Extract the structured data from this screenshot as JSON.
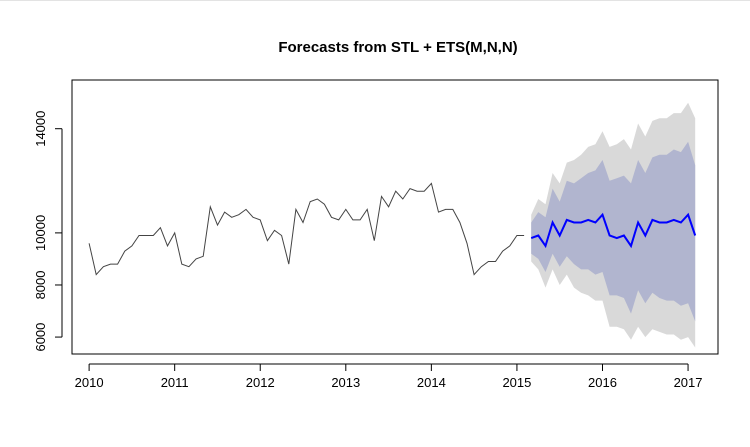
{
  "chart_data": {
    "type": "line",
    "title": "Forecasts from STL +  ETS(M,N,N)",
    "xlabel": "",
    "ylabel": "",
    "xlim": [
      2009.8,
      2017.35
    ],
    "ylim": [
      5350,
      15870
    ],
    "x_ticks": [
      2010,
      2011,
      2012,
      2013,
      2014,
      2015,
      2016,
      2017
    ],
    "y_ticks": [
      6000,
      8000,
      10000,
      14000
    ],
    "grid": false,
    "legend": "none",
    "colors": {
      "history": "#444444",
      "forecast": "#0000ff",
      "band80": "#b1b5cf",
      "band95": "#d9d9d9",
      "axis": "#000000"
    },
    "history": {
      "start": 2010.0,
      "step": 0.0833333,
      "values": [
        9600,
        8400,
        8700,
        8800,
        8800,
        9300,
        9500,
        9900,
        9900,
        9900,
        10200,
        9500,
        10000,
        8800,
        8700,
        9000,
        9100,
        11000,
        10300,
        10800,
        10600,
        10700,
        10900,
        10600,
        10500,
        9700,
        10100,
        9900,
        8800,
        10900,
        10400,
        11200,
        11300,
        11100,
        10600,
        10500,
        10900,
        10500,
        10500,
        10900,
        9700,
        11400,
        11000,
        11600,
        11300,
        11700,
        11600,
        11600,
        11900,
        10800,
        10900,
        10900,
        10400,
        9600,
        8400,
        8700,
        8900,
        8900,
        9300,
        9500,
        9900,
        9900
      ]
    },
    "forecast": {
      "start": 2015.1667,
      "step": 0.0833333,
      "mean": [
        9800,
        9900,
        9500,
        10400,
        9900,
        10500,
        10400,
        10400,
        10500,
        10400,
        10700,
        9900,
        9800,
        9900,
        9500,
        10400,
        9900,
        10500,
        10400,
        10400,
        10500,
        10400,
        10700,
        9900
      ],
      "lo80": [
        9200,
        9000,
        8500,
        9200,
        8700,
        9100,
        8800,
        8600,
        8600,
        8400,
        8500,
        7600,
        7600,
        7500,
        6900,
        7800,
        7300,
        7700,
        7500,
        7400,
        7400,
        7200,
        7300,
        6600
      ],
      "hi80": [
        10400,
        10800,
        10600,
        11700,
        11200,
        12000,
        11900,
        12100,
        12300,
        12400,
        12800,
        12000,
        12100,
        12200,
        11900,
        12800,
        12300,
        12900,
        13000,
        13000,
        13200,
        13100,
        13500,
        12600
      ],
      "lo95": [
        8900,
        8600,
        7900,
        8600,
        8000,
        8400,
        7900,
        7700,
        7600,
        7400,
        7400,
        6400,
        6400,
        6300,
        5900,
        6400,
        6000,
        6300,
        6200,
        6100,
        6100,
        5900,
        6000,
        5600
      ],
      "hi95": [
        10700,
        11300,
        11100,
        12300,
        11900,
        12700,
        12800,
        13000,
        13300,
        13400,
        13900,
        13300,
        13400,
        13600,
        13200,
        14200,
        13700,
        14300,
        14400,
        14400,
        14600,
        14600,
        15000,
        14400
      ]
    }
  }
}
